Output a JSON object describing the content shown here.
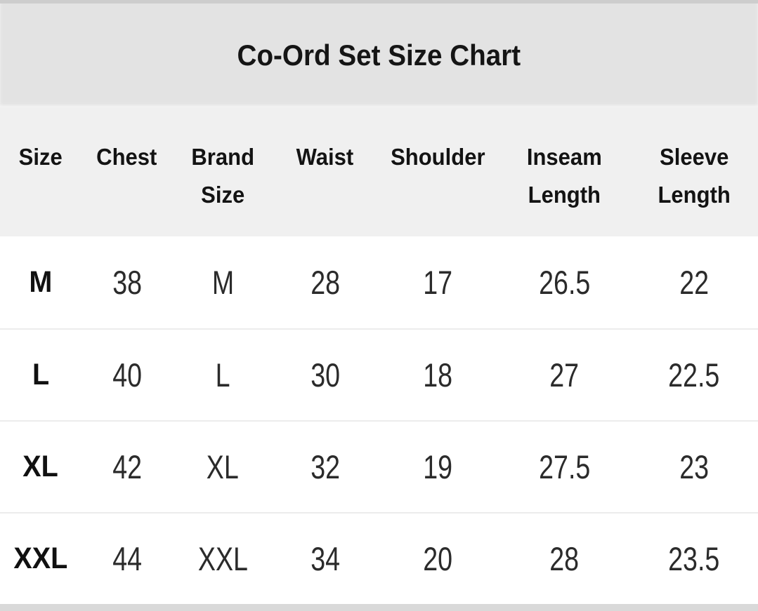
{
  "title": "Co-Ord Set Size Chart",
  "table": {
    "headers": [
      {
        "line1": "Size",
        "line2": ""
      },
      {
        "line1": "Chest",
        "line2": ""
      },
      {
        "line1": "Brand",
        "line2": "Size"
      },
      {
        "line1": "Waist",
        "line2": ""
      },
      {
        "line1": "Shoulder",
        "line2": ""
      },
      {
        "line1": "Inseam",
        "line2": "Length"
      },
      {
        "line1": "Sleeve",
        "line2": "Length"
      }
    ],
    "rows": [
      {
        "size": "M",
        "chest": "38",
        "brand_size": "M",
        "waist": "28",
        "shoulder": "17",
        "inseam_length": "26.5",
        "sleeve_length": "22"
      },
      {
        "size": "L",
        "chest": "40",
        "brand_size": "L",
        "waist": "30",
        "shoulder": "18",
        "inseam_length": "27",
        "sleeve_length": "22.5"
      },
      {
        "size": "XL",
        "chest": "42",
        "brand_size": "XL",
        "waist": "32",
        "shoulder": "19",
        "inseam_length": "27.5",
        "sleeve_length": "23"
      },
      {
        "size": "XXL",
        "chest": "44",
        "brand_size": "XXL",
        "waist": "34",
        "shoulder": "20",
        "inseam_length": "28",
        "sleeve_length": "23.5"
      }
    ]
  },
  "chart_data": {
    "type": "table",
    "title": "Co-Ord Set Size Chart",
    "columns": [
      "Size",
      "Chest",
      "Brand Size",
      "Waist",
      "Shoulder",
      "Inseam Length",
      "Sleeve Length"
    ],
    "rows": [
      [
        "M",
        38,
        "M",
        28,
        17,
        26.5,
        22
      ],
      [
        "L",
        40,
        "L",
        30,
        18,
        27,
        22.5
      ],
      [
        "XL",
        42,
        "XL",
        32,
        19,
        27.5,
        23
      ],
      [
        "XXL",
        44,
        "XXL",
        34,
        20,
        28,
        23.5
      ]
    ]
  },
  "colors": {
    "title_band_bg": "#e3e3e3",
    "header_band_bg": "#f0f0f0",
    "row_bg": "#ffffff",
    "separator": "#ececec",
    "text": "#1c1c1c"
  }
}
